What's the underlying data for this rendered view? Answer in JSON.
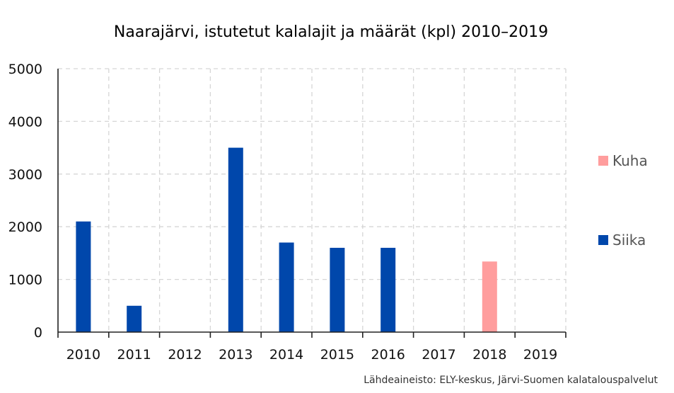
{
  "chart_data": {
    "type": "bar",
    "title": "Naarajärvi, istutetut kalalajit ja määrät (kpl) 2010–2019",
    "categories": [
      "2010",
      "2011",
      "2012",
      "2013",
      "2014",
      "2015",
      "2016",
      "2017",
      "2018",
      "2019"
    ],
    "series": [
      {
        "name": "Siika",
        "color": "#0047ab",
        "values": [
          2100,
          500,
          0,
          3500,
          1700,
          1600,
          1600,
          0,
          0,
          0
        ]
      },
      {
        "name": "Kuha",
        "color": "#ff9d9d",
        "values": [
          0,
          0,
          0,
          0,
          0,
          0,
          0,
          0,
          1340,
          0
        ]
      }
    ],
    "ylim": [
      0,
      5000
    ],
    "yticks": [
      "0",
      "1000",
      "2000",
      "3000",
      "4000",
      "5000"
    ],
    "xlabel": "",
    "ylabel": "",
    "grid": true,
    "legend_placement": "right",
    "legend_order": [
      "Kuha",
      "Siika"
    ],
    "source": "Lähdeaineisto: ELY-keskus, Järvi-Suomen kalatalouspalvelut"
  }
}
